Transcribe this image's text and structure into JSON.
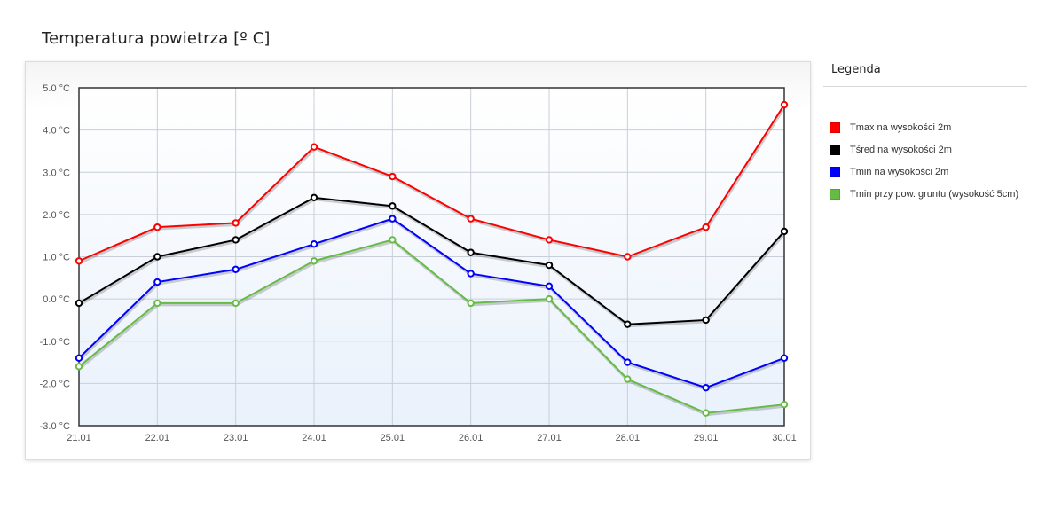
{
  "page": {
    "title": "Temperatura powietrza [º C]"
  },
  "legend": {
    "title": "Legenda"
  },
  "chart_data": {
    "type": "line",
    "title": "Temperatura powietrza [º C]",
    "xlabel": "",
    "ylabel": "",
    "categories": [
      "21.01",
      "22.01",
      "23.01",
      "24.01",
      "25.01",
      "26.01",
      "27.01",
      "28.01",
      "29.01",
      "30.01"
    ],
    "ylim": [
      -3,
      5
    ],
    "y_ticks": [
      -3,
      -2,
      -1,
      0,
      1,
      2,
      3,
      4,
      5
    ],
    "y_tick_labels": [
      "-3.0 °C",
      "-2.0 °C",
      "-1.0 °C",
      "0.0 °C",
      "1.0 °C",
      "2.0 °C",
      "3.0 °C",
      "4.0 °C",
      "5.0 °C"
    ],
    "grid": true,
    "legend_position": "right",
    "series": [
      {
        "name": "Tmax na wysokości 2m",
        "color": "#ff0000",
        "values": [
          0.9,
          1.7,
          1.8,
          3.6,
          2.9,
          1.9,
          1.4,
          1.0,
          1.7,
          4.6
        ]
      },
      {
        "name": "Tśred na wysokości 2m",
        "color": "#000000",
        "values": [
          -0.1,
          1.0,
          1.4,
          2.4,
          2.2,
          1.1,
          0.8,
          -0.6,
          -0.5,
          1.6
        ]
      },
      {
        "name": "Tmin na wysokości 2m",
        "color": "#0000ff",
        "values": [
          -1.4,
          0.4,
          0.7,
          1.3,
          1.9,
          0.6,
          0.3,
          -1.5,
          -2.1,
          -1.4
        ]
      },
      {
        "name": "Tmin przy pow. gruntu (wysokość 5cm)",
        "color": "#66bb44",
        "values": [
          -1.6,
          -0.1,
          -0.1,
          0.9,
          1.4,
          -0.1,
          0.0,
          -1.9,
          -2.7,
          -2.5
        ]
      }
    ]
  }
}
